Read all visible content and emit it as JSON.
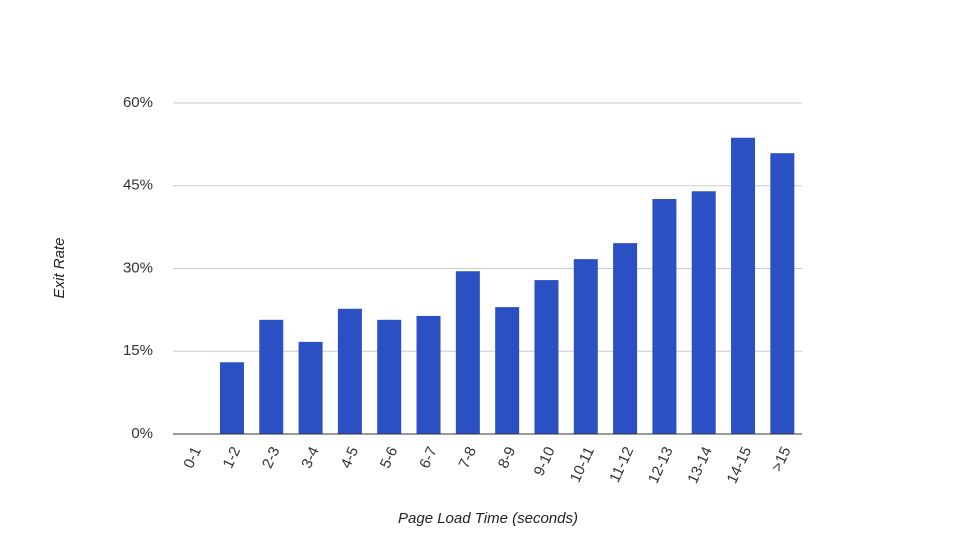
{
  "chart_data": {
    "type": "bar",
    "x_label": "Page Load Time (seconds)",
    "y_label": "Exit Rate",
    "categories": [
      "0-1",
      "1-2",
      "2-3",
      "3-4",
      "4-5",
      "5-6",
      "6-7",
      "7-8",
      "8-9",
      "9-10",
      "10-11",
      "11-12",
      "12-13",
      "13-14",
      "14-15",
      ">15"
    ],
    "values": [
      0,
      13,
      20.7,
      16.7,
      22.7,
      20.7,
      21.4,
      29.5,
      23,
      27.9,
      31.7,
      34.6,
      42.6,
      44,
      53.7,
      50.9
    ],
    "color": "#2a50c4",
    "ylim": [
      0,
      60
    ],
    "yticks": [
      {
        "value": 0,
        "label": "0%"
      },
      {
        "value": 15,
        "label": "15%"
      },
      {
        "value": 30,
        "label": "30%"
      },
      {
        "value": 45,
        "label": "45%"
      },
      {
        "value": 60,
        "label": "60%"
      }
    ],
    "grid": true
  }
}
